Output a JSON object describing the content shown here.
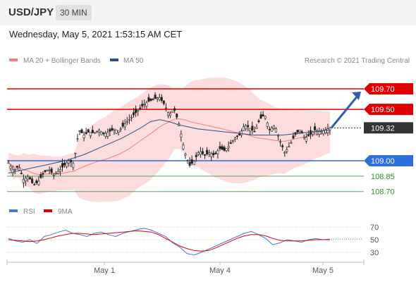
{
  "header": {
    "symbol": "USD/JPY",
    "timeframe": "30 MIN"
  },
  "datetime": "Wednesday, May 5, 2021 1:53:15 AM CET",
  "legend": {
    "ma20": {
      "label": "MA 20 + Bollinger Bands",
      "color": "#f08080"
    },
    "ma50": {
      "label": "MA 50",
      "color": "#2c4f8a"
    }
  },
  "credit": "Research © 2021 Trading Central",
  "colors": {
    "resistance": "#e00000",
    "support": "#2f6fdb",
    "minor_support": "#5aa55a",
    "candle": "#222222",
    "band": "#fbd6d6",
    "arrow": "#2c5fa8",
    "current": "#333333",
    "rsi": "#4a78d6",
    "ma9": "#e00000"
  },
  "levels": [
    {
      "value": 109.7,
      "label": "109.70",
      "kind": "resistance"
    },
    {
      "value": 109.5,
      "label": "109.50",
      "kind": "resistance"
    },
    {
      "value": 109.32,
      "label": "109.32",
      "kind": "current"
    },
    {
      "value": 109.0,
      "label": "109.00",
      "kind": "support"
    },
    {
      "value": 108.85,
      "label": "108.85",
      "kind": "minor"
    },
    {
      "value": 108.7,
      "label": "108.70",
      "kind": "minor"
    }
  ],
  "x_axis": {
    "ticks": [
      "May 1",
      "May 4",
      "May 5"
    ]
  },
  "rsi_panel": {
    "legend": [
      {
        "label": "RSI",
        "color": "#4a78d6"
      },
      {
        "label": "9MA",
        "color": "#e00000"
      }
    ],
    "ticks": [
      "70",
      "50",
      "30"
    ]
  },
  "chart_data": {
    "type": "line",
    "title": "USD/JPY 30 MIN",
    "price_range": [
      108.62,
      109.78
    ],
    "close": [
      108.98,
      108.9,
      108.95,
      108.82,
      108.85,
      108.76,
      108.8,
      108.88,
      108.92,
      108.86,
      108.9,
      108.95,
      109.0,
      108.97,
      109.3,
      109.25,
      109.28,
      109.27,
      109.3,
      109.26,
      109.28,
      109.31,
      109.29,
      109.35,
      109.4,
      109.45,
      109.5,
      109.55,
      109.58,
      109.6,
      109.62,
      109.55,
      109.45,
      109.5,
      109.35,
      109.1,
      108.95,
      109.0,
      109.1,
      109.05,
      109.08,
      109.05,
      109.12,
      109.1,
      109.15,
      109.22,
      109.25,
      109.35,
      109.32,
      109.28,
      109.4,
      109.45,
      109.3,
      109.35,
      109.2,
      109.08,
      109.15,
      109.25,
      109.3,
      109.22,
      109.25,
      109.3,
      109.28,
      109.3,
      109.32
    ],
    "ma50": [
      108.88,
      108.9,
      108.92,
      108.94,
      108.96,
      108.98,
      109.0,
      109.03,
      109.06,
      109.1,
      109.14,
      109.18,
      109.22,
      109.27,
      109.32,
      109.38,
      109.4,
      109.38,
      109.35,
      109.33,
      109.31,
      109.3,
      109.29,
      109.28,
      109.27,
      109.26,
      109.25,
      109.25,
      109.25,
      109.25,
      109.26,
      109.27,
      109.28,
      109.29,
      109.3
    ],
    "rsi": [
      52,
      48,
      46,
      50,
      44,
      55,
      58,
      62,
      65,
      60,
      58,
      55,
      60,
      62,
      58,
      55,
      60,
      63,
      66,
      68,
      65,
      60,
      55,
      45,
      38,
      28,
      26,
      30,
      35,
      40,
      45,
      50,
      55,
      60,
      63,
      58,
      52,
      42,
      45,
      50,
      48,
      46,
      50,
      52,
      50,
      51
    ],
    "rsi_ma9": [
      50,
      49,
      48,
      47,
      48,
      50,
      53,
      56,
      58,
      60,
      60,
      59,
      58,
      59,
      60,
      61,
      62,
      63,
      64,
      63,
      62,
      58,
      52,
      46,
      40,
      36,
      33,
      32,
      33,
      37,
      42,
      47,
      52,
      56,
      58,
      58,
      56,
      52,
      49,
      48,
      48,
      48,
      49,
      50,
      50,
      50
    ],
    "forecast": {
      "from": 109.32,
      "to": 109.7
    }
  }
}
